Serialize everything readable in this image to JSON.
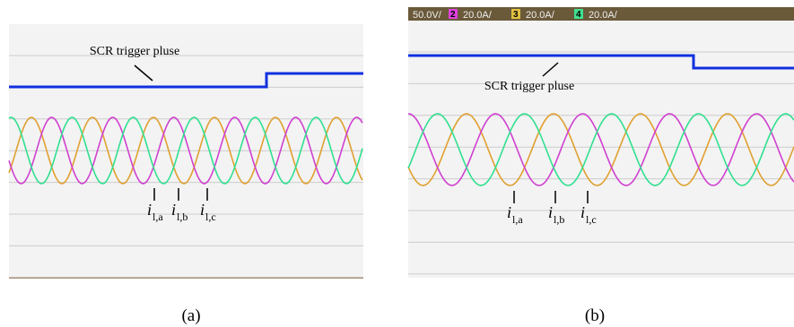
{
  "panels": [
    {
      "caption": "(a)",
      "trigger_label": "SCR trigger pluse",
      "current_labels": [
        {
          "symbol": "i",
          "subscript": "l,a"
        },
        {
          "symbol": "i",
          "subscript": "l,b"
        },
        {
          "symbol": "i",
          "subscript": "l,c"
        }
      ]
    },
    {
      "caption": "(b)",
      "trigger_label": "SCR trigger pluse",
      "current_labels": [
        {
          "symbol": "i",
          "subscript": "l,a"
        },
        {
          "symbol": "i",
          "subscript": "l,b"
        },
        {
          "symbol": "i",
          "subscript": "l,c"
        }
      ],
      "scope_header": {
        "first_scale": "50.0V/",
        "channels": [
          {
            "number": "2",
            "scale": "20.0A/"
          },
          {
            "number": "3",
            "scale": "20.0A/"
          },
          {
            "number": "4",
            "scale": "20.0A/"
          }
        ]
      }
    }
  ]
}
